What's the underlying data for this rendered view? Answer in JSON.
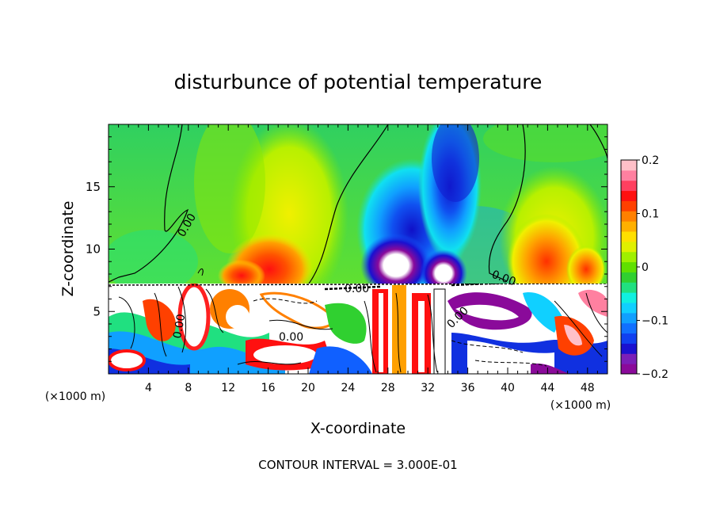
{
  "chart_data": {
    "type": "heatmap",
    "title": "disturbunce of potential temperature",
    "xlabel": "X-coordinate",
    "ylabel": "Z-coordinate",
    "x_unit_label_left": "(×1000 m)",
    "x_unit_label_right": "(×1000 m)",
    "footer": "CONTOUR INTERVAL = 3.000E-01",
    "x_ticks": [
      "4",
      "8",
      "12",
      "16",
      "20",
      "24",
      "28",
      "32",
      "36",
      "40",
      "44",
      "48"
    ],
    "y_ticks": [
      "5",
      "10",
      "15"
    ],
    "xlim": [
      0,
      50
    ],
    "ylim": [
      0,
      20
    ],
    "colorbar": {
      "ticks": [
        "0.2",
        "0.1",
        "0",
        "−0.1",
        "−0.2"
      ],
      "range": [
        -0.2,
        0.2
      ],
      "colors": [
        "#8a0a9a",
        "#7a1fb8",
        "#1a10d0",
        "#1040f0",
        "#1070ff",
        "#10a0ff",
        "#10d0ff",
        "#10f0e0",
        "#20e080",
        "#30d030",
        "#60e000",
        "#a0f000",
        "#e0f000",
        "#ffe000",
        "#ffb000",
        "#ff8000",
        "#ff4000",
        "#ff1010",
        "#ff4060",
        "#ff80a0",
        "#ffc0c8"
      ]
    },
    "contour_labels": [
      "0.00",
      "0.00",
      "0.00",
      "0.00",
      "0.00",
      "0.00"
    ]
  }
}
